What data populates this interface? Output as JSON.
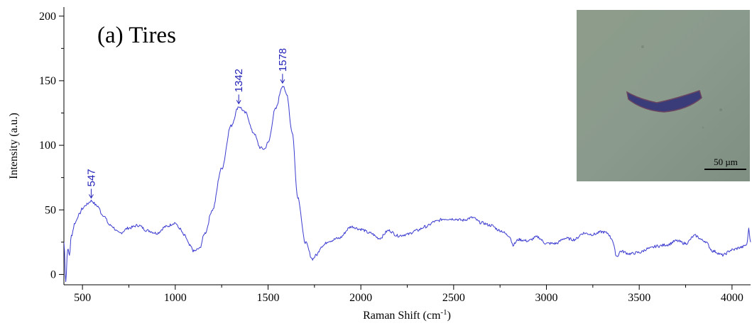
{
  "chart_data": {
    "type": "line",
    "title": "(a) Tires",
    "xlabel": "Raman Shift (cm",
    "xlabel_sup": "-1",
    "xlabel_close": ")",
    "ylabel": "Intensity (a.u.)",
    "xlim": [
      400,
      4100
    ],
    "ylim": [
      -8,
      207
    ],
    "x_ticks": [
      500,
      1000,
      1500,
      2000,
      2500,
      3000,
      3500,
      4000
    ],
    "y_ticks": [
      0,
      50,
      100,
      150,
      200
    ],
    "grid": false,
    "line_color": "#3b3bd0",
    "annotation_color": "#2323b8",
    "annotations": [
      {
        "label": "547",
        "x": 547,
        "y": 57
      },
      {
        "label": "1342",
        "x": 1342,
        "y": 130
      },
      {
        "label": "1578",
        "x": 1578,
        "y": 146
      }
    ],
    "series": [
      {
        "x": [
          400,
          410,
          420,
          430,
          440,
          460,
          480,
          500,
          520,
          547,
          580,
          610,
          650,
          700,
          750,
          800,
          850,
          900,
          950,
          1000,
          1020,
          1050,
          1080,
          1100,
          1130,
          1160,
          1200,
          1250,
          1300,
          1342,
          1380,
          1420,
          1460,
          1480,
          1500,
          1540,
          1578,
          1600,
          1630,
          1660,
          1700,
          1740,
          1760,
          1790,
          1830,
          1880,
          1950,
          2000,
          2050,
          2100,
          2150,
          2200,
          2250,
          2300,
          2350,
          2400,
          2450,
          2500,
          2550,
          2600,
          2650,
          2700,
          2750,
          2800,
          2820,
          2850,
          2900,
          2950,
          3000,
          3050,
          3100,
          3150,
          3200,
          3250,
          3300,
          3330,
          3350,
          3380,
          3400,
          3450,
          3500,
          3550,
          3600,
          3650,
          3700,
          3750,
          3800,
          3850,
          3900,
          3950,
          4000,
          4050,
          4080,
          4090,
          4100
        ],
        "y": [
          25,
          -5,
          20,
          15,
          30,
          40,
          46,
          51,
          54,
          57,
          53,
          46,
          38,
          32,
          36,
          38,
          34,
          32,
          37,
          40,
          36,
          30,
          22,
          18,
          20,
          32,
          50,
          82,
          115,
          130,
          125,
          110,
          98,
          97,
          102,
          128,
          146,
          140,
          110,
          60,
          25,
          12,
          15,
          22,
          26,
          28,
          37,
          35,
          32,
          28,
          34,
          30,
          31,
          34,
          37,
          41,
          43,
          43,
          42,
          44,
          40,
          38,
          34,
          30,
          23,
          27,
          26,
          29,
          24,
          24,
          28,
          27,
          32,
          31,
          33,
          32,
          28,
          14,
          18,
          16,
          17,
          20,
          22,
          23,
          26,
          24,
          30,
          26,
          18,
          15,
          19,
          21,
          23,
          35,
          25
        ]
      }
    ]
  },
  "inset": {
    "scale_bar_label": "50 µm",
    "background_color": "#8a9a8a",
    "particle_color": "#3a3c78"
  }
}
